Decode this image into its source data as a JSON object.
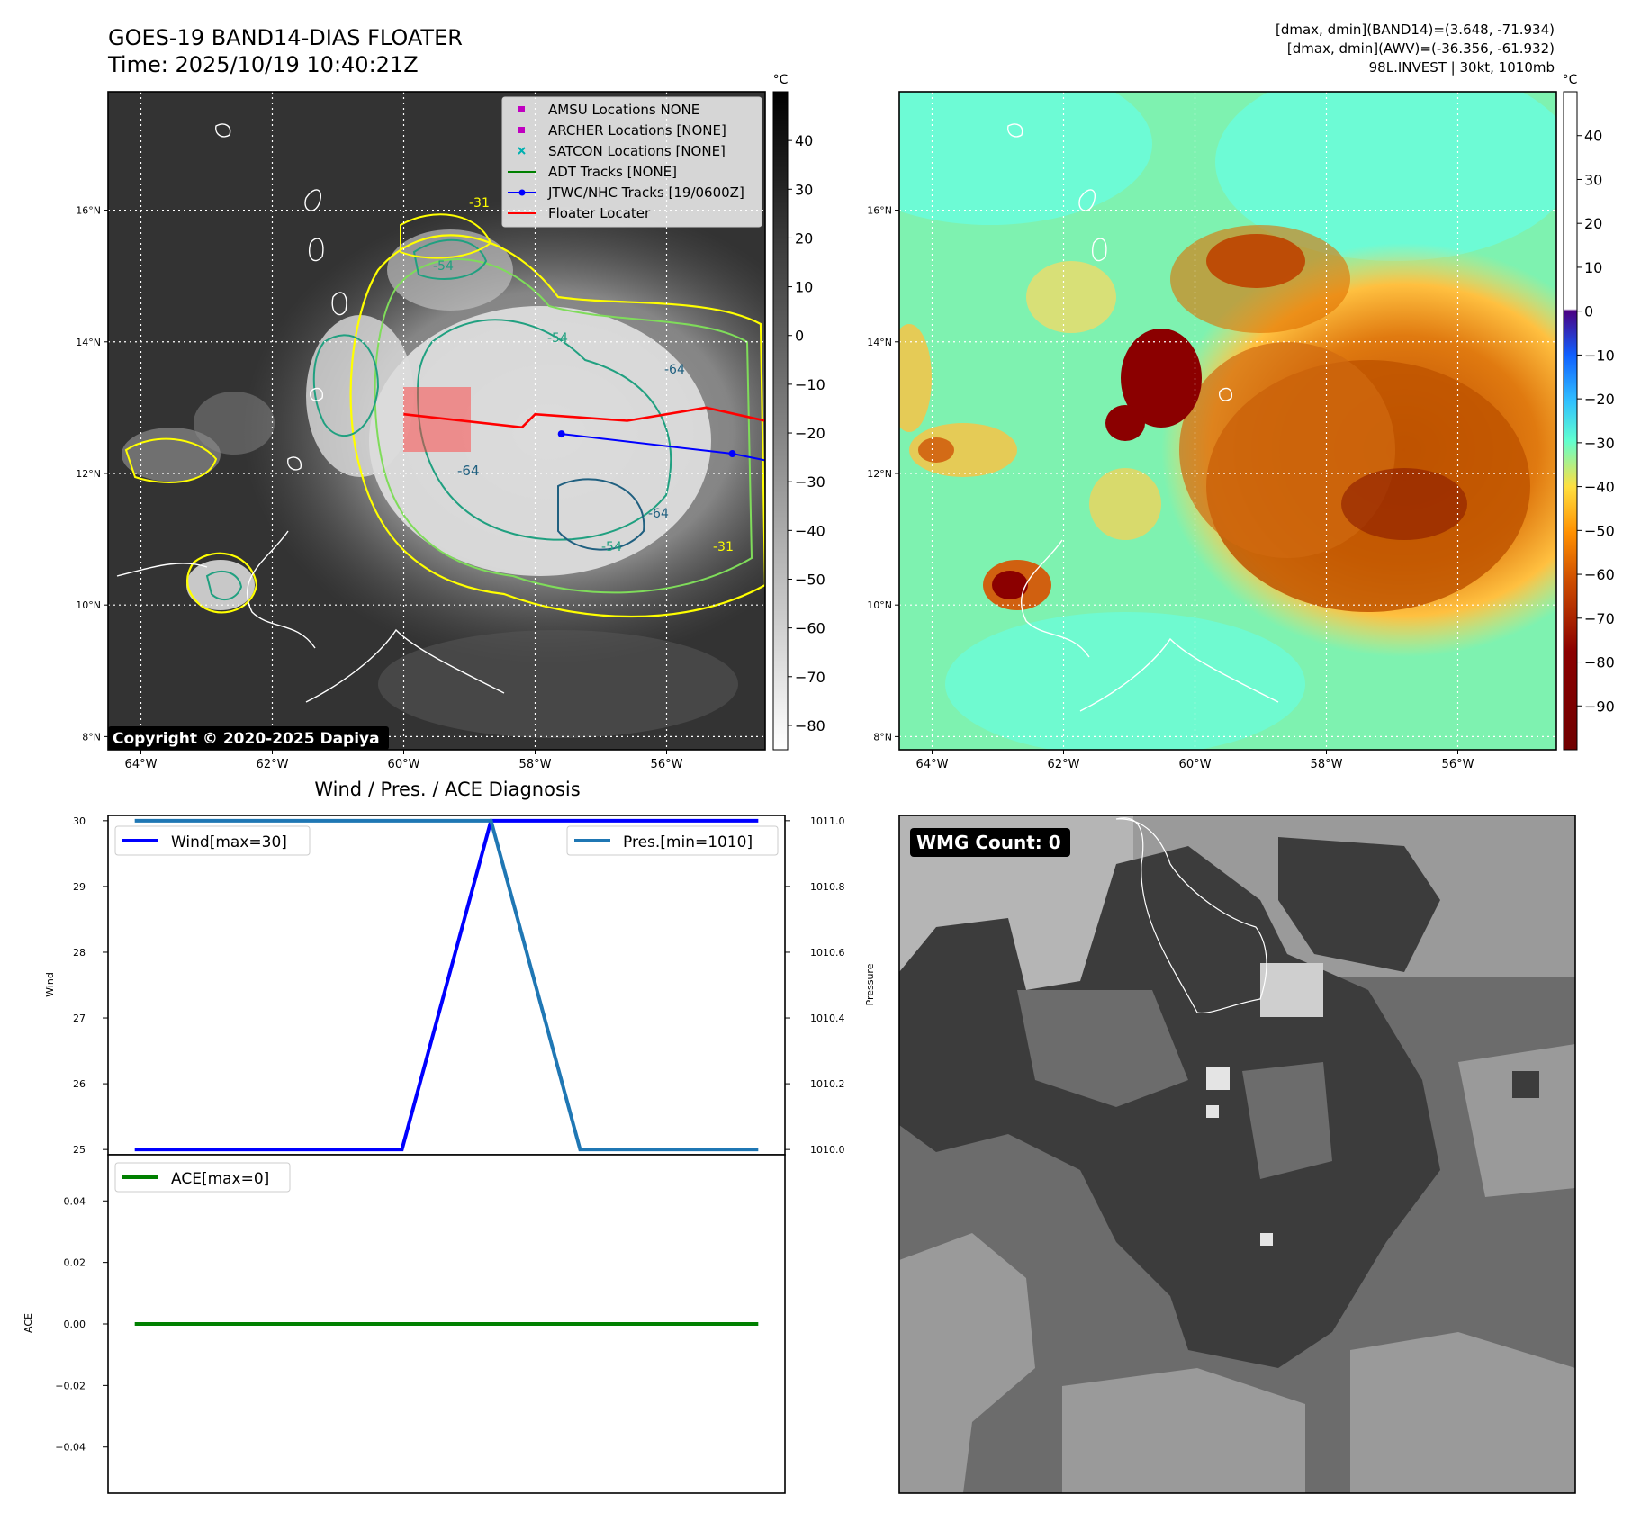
{
  "header": {
    "title_line1": "GOES-19 BAND14-DIAS FLOATER",
    "title_line2": "Time: 2025/10/19 10:40:21Z",
    "right_line1": "[dmax, dmin](BAND14)=(3.648, -71.934)",
    "right_line2": "[dmax, dmin](AWV)=(-36.356, -61.932)",
    "right_line3": "98L.INVEST | 30kt, 1010mb"
  },
  "copyright": "Copyright © 2020-2025 Dapiya",
  "maps": {
    "lat_ticks": [
      "16°N",
      "14°N",
      "12°N",
      "10°N",
      "8°N"
    ],
    "lat_values": [
      16,
      14,
      12,
      10,
      8
    ],
    "lon_ticks": [
      "64°W",
      "62°W",
      "60°W",
      "58°W",
      "56°W"
    ],
    "lon_values": [
      -64,
      -62,
      -60,
      -58,
      -56
    ],
    "lon_range": [
      -64.5,
      -54.5
    ],
    "lat_range": [
      7.8,
      17.8
    ],
    "contour_labels": [
      "-31",
      "-54",
      "-64",
      "-64",
      "-54",
      "-31",
      "-64",
      "-54"
    ]
  },
  "legend_left": {
    "items": [
      {
        "label": "AMSU Locations NONE",
        "color": "#c000c0",
        "marker": "square"
      },
      {
        "label": "ARCHER Locations [NONE]",
        "color": "#c000c0",
        "marker": "square"
      },
      {
        "label": "SATCON Locations [NONE]",
        "color": "#00b0b0",
        "marker": "x"
      },
      {
        "label": "ADT Tracks [NONE]",
        "color": "#008000",
        "marker": "line"
      },
      {
        "label": "JTWC/NHC Tracks [19/0600Z]",
        "color": "#0000ff",
        "marker": "line-dot"
      },
      {
        "label": "Floater Locater",
        "color": "#ff0000",
        "marker": "line"
      }
    ]
  },
  "colorbar_left": {
    "unit": "°C",
    "ticks": [
      "40",
      "30",
      "20",
      "10",
      "0",
      "−10",
      "−20",
      "−30",
      "−40",
      "−50",
      "−60",
      "−70",
      "−80"
    ],
    "tick_values": [
      40,
      30,
      20,
      10,
      0,
      -10,
      -20,
      -30,
      -40,
      -50,
      -60,
      -70,
      -80
    ],
    "range": [
      -85,
      50
    ]
  },
  "colorbar_right": {
    "unit": "°C",
    "ticks": [
      "40",
      "30",
      "20",
      "10",
      "0",
      "−10",
      "−20",
      "−30",
      "−40",
      "−50",
      "−60",
      "−70",
      "−80",
      "−90"
    ],
    "tick_values": [
      40,
      30,
      20,
      10,
      0,
      -10,
      -20,
      -30,
      -40,
      -50,
      -60,
      -70,
      -80,
      -90
    ],
    "range": [
      -100,
      50
    ]
  },
  "tracks": {
    "floater": {
      "color": "#ff0000",
      "points": [
        [
          -60,
          12.9
        ],
        [
          -58.2,
          12.7
        ],
        [
          -58,
          12.9
        ],
        [
          -56.6,
          12.8
        ],
        [
          -55.4,
          13
        ],
        [
          -54.5,
          12.8
        ]
      ]
    },
    "jtwc": {
      "color": "#0000ff",
      "points": [
        [
          -57.6,
          12.6
        ],
        [
          -55,
          12.3
        ],
        [
          -54.5,
          12.2
        ]
      ],
      "dots": [
        [
          -57.6,
          12.6
        ],
        [
          -55,
          12.3
        ]
      ]
    }
  },
  "diag": {
    "title": "Wind / Pres. / ACE Diagnosis",
    "wind_ylabel": "Wind",
    "pres_ylabel": "Pressure",
    "ace_ylabel": "ACE",
    "wind_ticks": [
      "30",
      "29",
      "28",
      "27",
      "26",
      "25"
    ],
    "wind_tick_values": [
      30,
      29,
      28,
      27,
      26,
      25
    ],
    "pres_ticks": [
      "1011.0",
      "1010.8",
      "1010.6",
      "1010.4",
      "1010.2",
      "1010.0"
    ],
    "pres_tick_values": [
      1011.0,
      1010.8,
      1010.6,
      1010.4,
      1010.2,
      1010.0
    ],
    "ace_ticks": [
      "0.04",
      "0.02",
      "0.00",
      "−0.02",
      "−0.04"
    ],
    "ace_tick_values": [
      0.04,
      0.02,
      0.0,
      -0.02,
      -0.04
    ],
    "wind_legend": "Wind[max=30]",
    "pres_legend": "Pres.[min=1010]",
    "ace_legend": "ACE[max=0]"
  },
  "wmg": {
    "label": "WMG Count: 0"
  },
  "chart_data": [
    {
      "type": "line",
      "title": "Wind / Pres. / ACE Diagnosis",
      "x": [
        0,
        1,
        2,
        3,
        4,
        5,
        6,
        7
      ],
      "series": [
        {
          "name": "Wind[max=30]",
          "axis": "left",
          "color": "#0000ff",
          "values": [
            25,
            25,
            25,
            25,
            30,
            30,
            30,
            30
          ]
        },
        {
          "name": "Pres.[min=1010]",
          "axis": "right",
          "color": "#1f77b4",
          "values": [
            1011,
            1011,
            1011,
            1011,
            1011,
            1010,
            1010,
            1010
          ]
        }
      ],
      "ylabel": "Wind",
      "y2label": "Pressure",
      "ylim": [
        24.92,
        30.08
      ],
      "y2lim": [
        1009.984,
        1011.016
      ],
      "xlim": [
        -0.3,
        7.3
      ]
    },
    {
      "type": "line",
      "x": [
        0,
        1,
        2,
        3,
        4,
        5,
        6,
        7
      ],
      "series": [
        {
          "name": "ACE[max=0]",
          "color": "#008000",
          "values": [
            0,
            0,
            0,
            0,
            0,
            0,
            0,
            0
          ]
        }
      ],
      "ylabel": "ACE",
      "ylim": [
        -0.055,
        0.055
      ],
      "xlim": [
        -0.3,
        7.3
      ]
    }
  ]
}
